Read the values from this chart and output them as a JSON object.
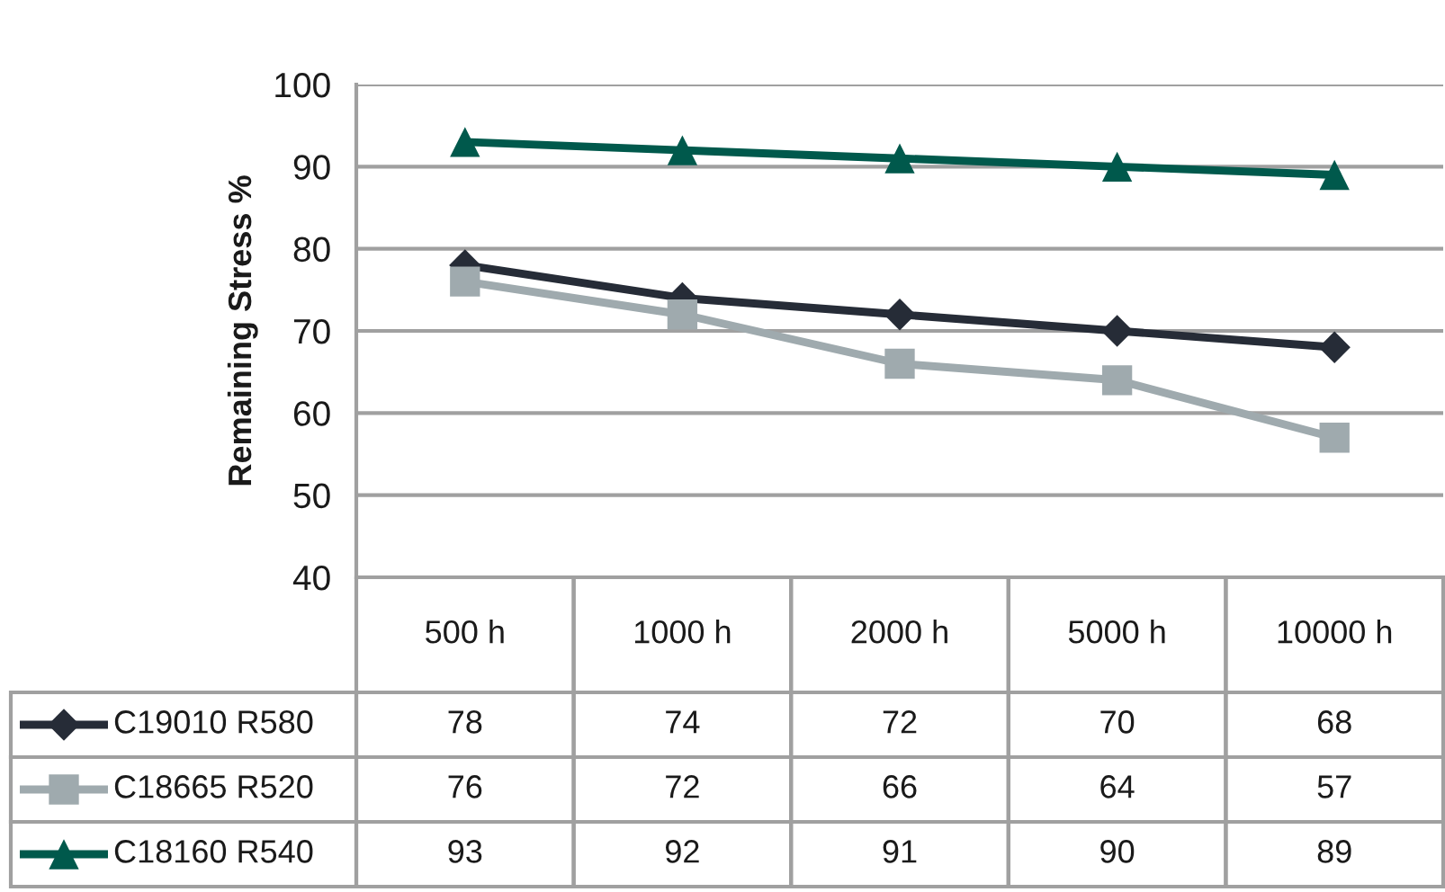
{
  "chart_data": {
    "type": "line",
    "ylabel": "Remaining Stress %",
    "categories": [
      "500 h",
      "1000 h",
      "2000 h",
      "5000 h",
      "10000 h"
    ],
    "series": [
      {
        "name": "C19010 R580",
        "color": "#262c37",
        "marker": "diamond",
        "values": [
          78,
          74,
          72,
          70,
          68
        ]
      },
      {
        "name": "C18665 R520",
        "color": "#9faaae",
        "marker": "square",
        "values": [
          76,
          72,
          66,
          64,
          57
        ]
      },
      {
        "name": "C18160 R540",
        "color": "#00594c",
        "marker": "triangle",
        "values": [
          93,
          92,
          91,
          90,
          89
        ]
      }
    ],
    "ylim": [
      40,
      100
    ],
    "yticks": [
      40,
      50,
      60,
      70,
      80,
      90,
      100
    ],
    "grid": "y",
    "legend": "bottom left",
    "data_labels": true
  }
}
